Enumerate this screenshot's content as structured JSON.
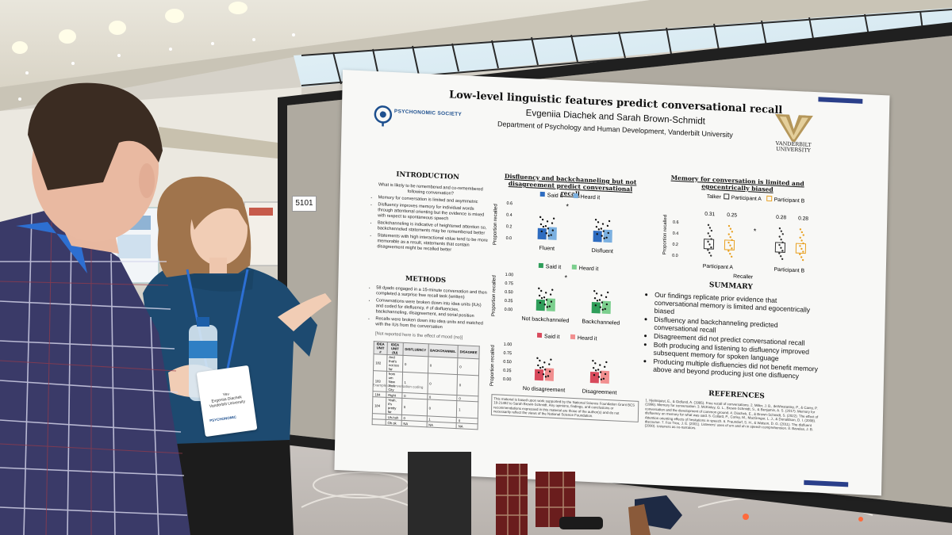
{
  "poster": {
    "title": "Low-level linguistic features predict conversational recall",
    "authors": "Evgeniia Diachek and Sarah Brown-Schmidt",
    "affiliation": "Department of Psychology and Human Development, Vanderbilt University",
    "society_logo": "PSYCHONOMIC SOCIETY",
    "university_logo": "VANDERBILT UNIVERSITY",
    "introduction": {
      "heading": "INTRODUCTION",
      "question": "What is likely to be remembered and co-remembered following conversation?",
      "bullets": [
        "Memory for conversation is limited and asymmetric",
        "Disfluency improves memory for individual words through attentional orienting but the evidence is mixed with respect to spontaneous speech",
        "Backchanneling is indicative of heightened attention so, backchanneled statements may be remembered better",
        "Statements with high interactional value tend to be more memorable as a result, statements that contain disagreement might be recalled better"
      ]
    },
    "methods": {
      "heading": "METHODS",
      "bullets": [
        "58 dyads engaged in a 15-minute conversation and then completed a surprise free recall task (written)",
        "Conversations were broken down into idea units (IUs) and coded for disfluency, # of disfluencies, backchanneling, disagreement, and serial position",
        "Recalls were broken down into idea units and matched with the IUs from the conversation"
      ],
      "note": "[Not reported here is the effect of mood (no)]",
      "table": {
        "headers": [
          "IDEA UNIT #",
          "IDEA UNIT (IU)",
          "DISFLUENCY",
          "BACKCHANNEL",
          "DISAGREE"
        ],
        "rows": [
          [
            "182",
            "And that's not too far",
            "0",
            "0",
            "0"
          ],
          [
            "183",
            "from um New York City",
            "1",
            "0",
            "0"
          ],
          [
            "184",
            "Right",
            "0",
            "0",
            "0"
          ],
          [
            "184",
            "Yeah, it's pretty far",
            "0",
            "0",
            "1"
          ],
          [
            "",
            "Uh-huh",
            "0",
            "1",
            "0"
          ],
          [
            "",
            "Oh ok",
            "NA",
            "NA",
            "NA"
          ]
        ],
        "caption": "Example of conversation coding"
      }
    },
    "middle_heading": "Disfluency and backchanneling but not disagreement predict conversational recall",
    "right_heading": "Memory for conversation is limited and egocentrically biased",
    "summary": {
      "heading": "SUMMARY",
      "bullets": [
        "Our findings replicate prior evidence that conversational memory is limited and egocentrically biased",
        "Disfluency and backchanneling predicted conversational recall",
        "Disagreement did not predict conversational recall",
        "Both producing and listening to disfluency improved subsequent memory for spoken language",
        "Producing multiple disfluencies did not benefit memory above and beyond producing just one disfluency"
      ]
    },
    "references_heading": "REFERENCES",
    "references": "1. Hjelmquist, E., & Gidlund, A. (1985). Free recall of conversations. 2. Miller, J. B., deWinstanley, P., & Carey, P. (1996). Memory for conversation. 3. McKinley, G. L., Brown-Schmidt, S., & Benjamin, A. S. (2017). Memory for conversation and the development of common ground. 4. Diachek, E., & Brown-Schmidt, S. (2022). The effect of disfluency on memory for what was said. 5. Collard, P., Corley, M., MacGregor, L. J., & Donaldson, D. I. (2008). Attention orienting effects of hesitations in speech. 6. Fraundorf, S. H., & Watson, D. G. (2011). The disfluent discourse. 7. Fox Tree, J. E. (2001). Listeners' uses of um and uh in speech comprehension. 8. Bavelas, J. B. (2000). Listeners as co-narrators.",
    "funding": "This material is based upon work supported by the National Science Foundation Grant BCS 19-21492 to Sarah Brown-Schmidt. Any opinions, findings, and conclusions or recommendations expressed in this material are those of the author(s) and do not necessarily reflect the views of the National Science Foundation.",
    "booth_number": "5101",
    "charts": {
      "ylabel": "Proportion recalled",
      "legend_said": "Said it",
      "legend_heard": "Heard it",
      "fluency": {
        "categories": [
          "Fluent",
          "Disfluent"
        ],
        "yticks": [
          "0.0",
          "0.2",
          "0.4",
          "0.6"
        ],
        "star": "*"
      },
      "backchannel": {
        "categories": [
          "Not backchanneled",
          "Backchanneled"
        ],
        "yticks": [
          "0.00",
          "0.25",
          "0.50",
          "0.75",
          "1.00"
        ],
        "star": "*"
      },
      "disagreement": {
        "categories": [
          "No disagreement",
          "Disagreement"
        ],
        "yticks": [
          "0.00",
          "0.25",
          "0.50",
          "0.75",
          "1.00"
        ]
      },
      "recaller": {
        "legend_title": "Talker",
        "legend_a": "Participant A",
        "legend_b": "Participant B",
        "categories": [
          "Participant A",
          "Participant B"
        ],
        "xlabel": "Recaller",
        "ylabel": "Proportion recalled",
        "yticks": [
          "0.0",
          "0.2",
          "0.4",
          "0.6"
        ],
        "values_a": [
          "0.31",
          "0.28"
        ],
        "values_b": [
          "0.25",
          "0.28"
        ],
        "star": "*"
      }
    }
  },
  "badge": {
    "line1": "Yev",
    "line2": "Evgeniia Diachek",
    "line3": "Vanderbilt University",
    "org": "PSYCHONOMIC"
  },
  "colors": {
    "said_blue": "#2e6cc0",
    "heard_blue": "#7bb0e0",
    "said_green": "#2f9e5a",
    "heard_green": "#7ccf8e",
    "said_red": "#d84a5c",
    "heard_red": "#f18f8f",
    "partA": "#333333",
    "partB": "#e8a020"
  }
}
